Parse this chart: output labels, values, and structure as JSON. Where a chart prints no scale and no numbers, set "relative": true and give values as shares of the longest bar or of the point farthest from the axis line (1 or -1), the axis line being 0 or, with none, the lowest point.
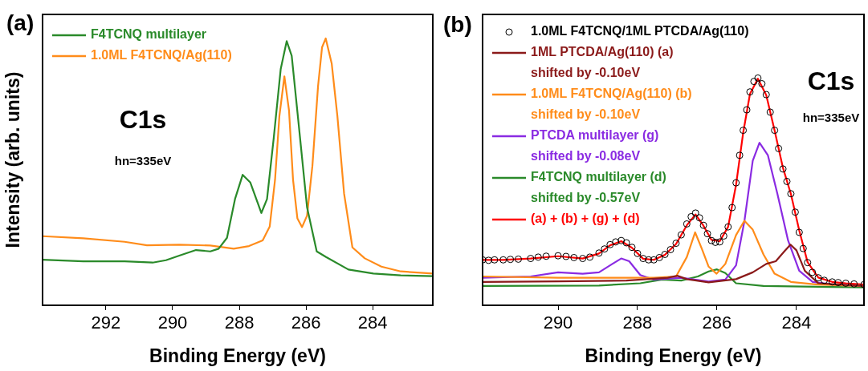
{
  "chart_data": [
    {
      "type": "line",
      "relative": true,
      "xlabel": "Binding Energy (eV)",
      "ylabel": "Intensity (arb. units)",
      "xlim": [
        293.9,
        282.2
      ],
      "xticks": [
        292,
        290,
        288,
        286,
        284
      ],
      "legend": "top left",
      "annotations": [
        "(a)",
        "C1s",
        "hn=335eV"
      ],
      "series": [
        {
          "name": "F4TCNQ multilayer",
          "color": "#2a8a2a",
          "x": [
            293.9,
            292.68,
            291.44,
            290.6,
            290.2,
            289.8,
            289.3,
            288.87,
            288.62,
            288.37,
            288.13,
            287.9,
            287.67,
            287.34,
            287.17,
            286.97,
            286.76,
            286.58,
            286.43,
            286.22,
            285.97,
            285.68,
            285.4,
            284.73,
            283.98,
            283.16,
            282.2
          ],
          "values": [
            0.171,
            0.165,
            0.165,
            0.16,
            0.169,
            0.186,
            0.207,
            0.202,
            0.212,
            0.253,
            0.398,
            0.489,
            0.46,
            0.346,
            0.398,
            0.626,
            0.885,
            0.99,
            0.935,
            0.677,
            0.367,
            0.202,
            0.181,
            0.134,
            0.119,
            0.112,
            0.109
          ]
        },
        {
          "name": "1.0ML F4TCNQ/Ag(110)",
          "color": "#ff8c1a",
          "x": [
            293.9,
            292.68,
            291.44,
            290.77,
            289.8,
            288.87,
            288.17,
            287.71,
            287.3,
            287.09,
            286.93,
            286.8,
            286.65,
            286.51,
            286.39,
            286.26,
            286.12,
            285.97,
            285.81,
            285.64,
            285.52,
            285.41,
            285.23,
            285.06,
            284.86,
            284.61,
            284.24,
            283.74,
            283.16,
            282.2
          ],
          "values": [
            0.259,
            0.251,
            0.238,
            0.225,
            0.227,
            0.224,
            0.212,
            0.222,
            0.243,
            0.295,
            0.47,
            0.708,
            0.858,
            0.729,
            0.47,
            0.326,
            0.293,
            0.336,
            0.522,
            0.822,
            0.967,
            1,
            0.905,
            0.708,
            0.419,
            0.217,
            0.176,
            0.145,
            0.127,
            0.119
          ]
        }
      ]
    },
    {
      "type": "line",
      "relative": true,
      "xlabel": "Binding Energy (eV)",
      "xlim": [
        291.9,
        282.3
      ],
      "xticks": [
        290,
        288,
        286,
        284
      ],
      "legend": "top left",
      "annotations": [
        "(b)",
        "C1s",
        "hn=335eV"
      ],
      "series": [
        {
          "name": "1.0ML F4TCNQ/1ML PTCDA/Ag(110)",
          "type": "scatter",
          "marker": "circle",
          "color": "#000000",
          "x": [
            291.9,
            291.75,
            291.6,
            291.38,
            291.2,
            291.0,
            290.69,
            290.5,
            290.3,
            290.0,
            289.8,
            289.6,
            289.38,
            289.2,
            288.97,
            288.83,
            288.69,
            288.55,
            288.41,
            288.28,
            288.14,
            288.0,
            287.86,
            287.72,
            287.59,
            287.45,
            287.31,
            287.17,
            287.03,
            286.9,
            286.76,
            286.65,
            286.54,
            286.44,
            286.34,
            286.24,
            286.14,
            286.04,
            285.93,
            285.83,
            285.72,
            285.62,
            285.52,
            285.43,
            285.34,
            285.25,
            285.17,
            285.07,
            284.97,
            284.87,
            284.76,
            284.66,
            284.55,
            284.45,
            284.34,
            284.24,
            284.14,
            284.03,
            283.93,
            283.83,
            283.72,
            283.6,
            283.45,
            283.3,
            283.1,
            282.95,
            282.76,
            282.55,
            282.3
          ],
          "values": [
            0.2,
            0.198,
            0.2,
            0.2,
            0.202,
            0.203,
            0.206,
            0.212,
            0.216,
            0.218,
            0.215,
            0.21,
            0.206,
            0.212,
            0.23,
            0.248,
            0.267,
            0.279,
            0.285,
            0.275,
            0.255,
            0.228,
            0.206,
            0.2,
            0.2,
            0.21,
            0.224,
            0.245,
            0.273,
            0.31,
            0.358,
            0.39,
            0.406,
            0.385,
            0.352,
            0.315,
            0.285,
            0.277,
            0.279,
            0.305,
            0.345,
            0.43,
            0.539,
            0.66,
            0.77,
            0.86,
            0.939,
            0.985,
            1,
            0.975,
            0.927,
            0.85,
            0.77,
            0.69,
            0.6,
            0.545,
            0.491,
            0.41,
            0.321,
            0.25,
            0.188,
            0.145,
            0.121,
            0.11,
            0.103,
            0.1,
            0.097,
            0.094,
            0.091
          ]
        },
        {
          "name": "1ML PTCDA/Ag(110) (a)\nshifted by -0.10eV",
          "color": "#8b1a1a",
          "x": [
            291.9,
            290.0,
            288.28,
            287.24,
            287.0,
            286.76,
            286.21,
            285.52,
            285.1,
            284.76,
            284.52,
            284.31,
            284.15,
            284.0,
            283.79,
            283.45,
            282.3
          ],
          "values": [
            0.103,
            0.105,
            0.109,
            0.121,
            0.13,
            0.115,
            0.101,
            0.115,
            0.145,
            0.182,
            0.194,
            0.236,
            0.267,
            0.242,
            0.152,
            0.097,
            0.085
          ]
        },
        {
          "name": "1.0ML F4TCNQ/Ag(110) (b)\nshifted by -0.10eV",
          "color": "#ff8c1a",
          "x": [
            291.9,
            290.0,
            287.59,
            287.03,
            286.76,
            286.55,
            286.38,
            286.21,
            286.01,
            285.79,
            285.52,
            285.31,
            285.1,
            284.83,
            284.55,
            284.14,
            283.45,
            282.3
          ],
          "values": [
            0.127,
            0.121,
            0.121,
            0.127,
            0.212,
            0.321,
            0.248,
            0.17,
            0.139,
            0.182,
            0.309,
            0.372,
            0.333,
            0.224,
            0.139,
            0.103,
            0.091,
            0.085
          ]
        },
        {
          "name": "PTCDA multilayer (g)\nshifted by -0.08eV",
          "color": "#8a2be2",
          "x": [
            291.9,
            290.69,
            290.0,
            289.38,
            288.97,
            288.69,
            288.41,
            288.21,
            287.93,
            287.59,
            286.9,
            286.21,
            285.79,
            285.52,
            285.31,
            285.1,
            284.93,
            284.72,
            284.48,
            284.21,
            283.93,
            283.59,
            283.1,
            282.3
          ],
          "values": [
            0.121,
            0.127,
            0.145,
            0.139,
            0.145,
            0.176,
            0.206,
            0.194,
            0.133,
            0.113,
            0.121,
            0.105,
            0.113,
            0.176,
            0.37,
            0.636,
            0.715,
            0.661,
            0.491,
            0.285,
            0.152,
            0.103,
            0.091,
            0.085
          ]
        },
        {
          "name": "F4TCNQ multilayer (d)\nshifted by -0.57eV",
          "color": "#2a8a2a",
          "x": [
            291.9,
            288.97,
            287.93,
            287.38,
            286.9,
            286.48,
            286.21,
            286.0,
            285.79,
            285.52,
            284.83,
            282.3
          ],
          "values": [
            0.085,
            0.087,
            0.097,
            0.113,
            0.109,
            0.127,
            0.149,
            0.158,
            0.142,
            0.097,
            0.085,
            0.079
          ]
        },
        {
          "name": "(a) + (b) + (g) + (d)",
          "color": "#ff0000",
          "x": [
            291.9,
            291.38,
            290.69,
            290.0,
            289.38,
            288.97,
            288.69,
            288.41,
            288.14,
            287.86,
            287.59,
            287.31,
            287.03,
            286.76,
            286.54,
            286.34,
            286.14,
            285.93,
            285.72,
            285.52,
            285.34,
            285.17,
            284.97,
            284.76,
            284.55,
            284.34,
            284.14,
            283.93,
            283.72,
            283.45,
            283.1,
            282.76,
            282.3
          ],
          "values": [
            0.2,
            0.2,
            0.206,
            0.216,
            0.206,
            0.228,
            0.264,
            0.282,
            0.253,
            0.205,
            0.2,
            0.222,
            0.27,
            0.352,
            0.4,
            0.35,
            0.288,
            0.282,
            0.345,
            0.53,
            0.76,
            0.93,
            0.997,
            0.925,
            0.77,
            0.605,
            0.49,
            0.33,
            0.19,
            0.122,
            0.103,
            0.097,
            0.091
          ]
        }
      ]
    }
  ]
}
